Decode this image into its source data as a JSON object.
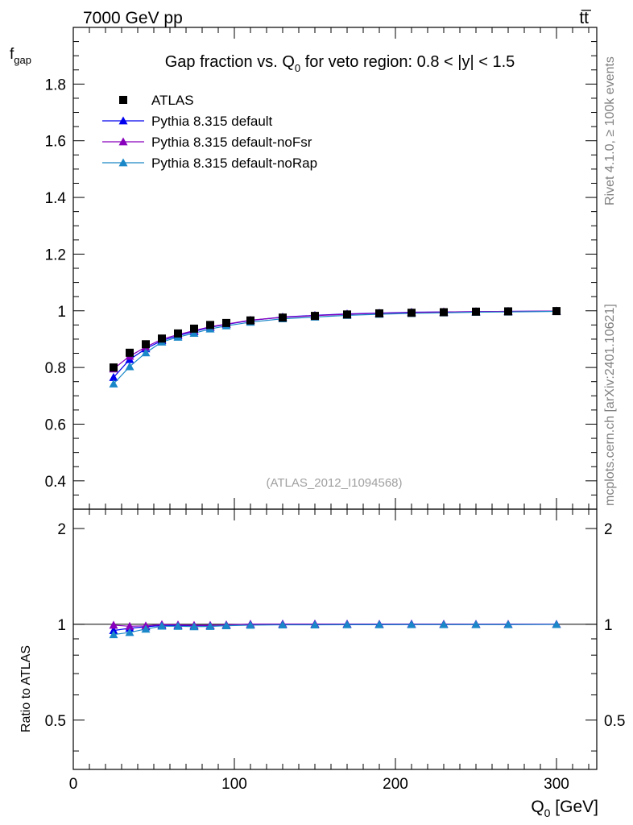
{
  "header": {
    "left": "7000 GeV pp",
    "right": "tt̅"
  },
  "side_labels": {
    "rivet": "Rivet 4.1.0, ≥ 100k events",
    "mcplots": "mcplots.cern.ch [arXiv:2401.10621]"
  },
  "chart_data": {
    "type": "line",
    "title": "Gap fraction vs. Q0 for veto region: 0.8 < |y| < 1.5",
    "analysis_id": "(ATLAS_2012_I1094568)",
    "xlabel": "Q0 [GeV]",
    "ylabel_main": "fgap",
    "ylabel_ratio": "Ratio to ATLAS",
    "xlim": [
      0,
      325
    ],
    "ylim_main": [
      0.3,
      2.0
    ],
    "ylim_ratio": [
      0.35,
      2.3
    ],
    "x_ticks": [
      0,
      100,
      200,
      300
    ],
    "y_ticks_main": [
      0.4,
      0.6,
      0.8,
      1,
      1.2,
      1.4,
      1.6,
      1.8
    ],
    "y_ticks_ratio": [
      0.5,
      1,
      2
    ],
    "x": [
      25,
      35,
      45,
      55,
      65,
      75,
      85,
      95,
      110,
      130,
      150,
      170,
      190,
      210,
      230,
      250,
      270,
      300
    ],
    "series": [
      {
        "name": "ATLAS",
        "color": "#000000",
        "marker": "square",
        "values": [
          0.8,
          0.852,
          0.882,
          0.902,
          0.92,
          0.937,
          0.95,
          0.957,
          0.966,
          0.976,
          0.982,
          0.987,
          0.991,
          0.993,
          0.995,
          0.997,
          0.998,
          0.999
        ]
      },
      {
        "name": "Pythia 8.315 default",
        "color": "#0000ee",
        "marker": "triangle",
        "values": [
          0.765,
          0.828,
          0.866,
          0.895,
          0.912,
          0.927,
          0.942,
          0.952,
          0.966,
          0.978,
          0.984,
          0.989,
          0.992,
          0.995,
          0.996,
          0.997,
          0.998,
          0.999
        ]
      },
      {
        "name": "Pythia 8.315 default-noFsr",
        "color": "#8800bb",
        "marker": "triangle",
        "values": [
          0.795,
          0.84,
          0.872,
          0.9,
          0.916,
          0.93,
          0.944,
          0.953,
          0.967,
          0.977,
          0.983,
          0.988,
          0.991,
          0.994,
          0.996,
          0.997,
          0.998,
          0.999
        ]
      },
      {
        "name": "Pythia 8.315 default-noRap",
        "color": "#1a88c8",
        "marker": "triangle",
        "values": [
          0.742,
          0.803,
          0.852,
          0.89,
          0.907,
          0.921,
          0.936,
          0.947,
          0.96,
          0.972,
          0.978,
          0.984,
          0.988,
          0.991,
          0.993,
          0.995,
          0.996,
          0.998
        ]
      }
    ],
    "ratio_series": [
      {
        "name": "Pythia 8.315 default",
        "color": "#0000ee",
        "values": [
          0.956,
          0.972,
          0.982,
          0.992,
          0.991,
          0.989,
          0.991,
          0.995,
          1.0,
          1.002,
          1.002,
          1.002,
          1.001,
          1.002,
          1.001,
          1.0,
          1.0,
          1.0
        ]
      },
      {
        "name": "Pythia 8.315 default-noFsr",
        "color": "#8800bb",
        "values": [
          0.994,
          0.986,
          0.989,
          0.998,
          0.996,
          0.993,
          0.993,
          0.996,
          1.001,
          1.001,
          1.001,
          1.001,
          1.0,
          1.001,
          1.001,
          1.0,
          1.0,
          1.0
        ]
      },
      {
        "name": "Pythia 8.315 default-noRap",
        "color": "#1a88c8",
        "values": [
          0.928,
          0.943,
          0.966,
          0.987,
          0.986,
          0.983,
          0.985,
          0.99,
          0.994,
          0.996,
          0.996,
          0.997,
          0.997,
          0.998,
          0.998,
          0.998,
          0.998,
          0.999
        ]
      }
    ]
  }
}
